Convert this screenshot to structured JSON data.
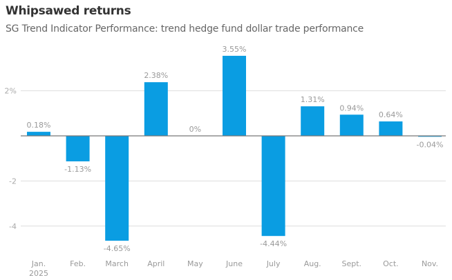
{
  "chart_data": {
    "type": "bar",
    "title": "Whipsawed returns",
    "subtitle": "SG Trend Indicator Performance: trend hedge fund dollar trade performance",
    "categories": [
      "Jan.\n2025",
      "Feb.",
      "March",
      "April",
      "May",
      "June",
      "July",
      "Aug.",
      "Sept.",
      "Oct.",
      "Nov."
    ],
    "values": [
      0.18,
      -1.13,
      -4.65,
      2.38,
      0,
      3.55,
      -4.44,
      1.31,
      0.94,
      0.64,
      -0.04
    ],
    "data_labels": [
      "0.18%",
      "-1.13%",
      "-4.65%",
      "2.38%",
      "0%",
      "3.55%",
      "-4.44%",
      "1.31%",
      "0.94%",
      "0.64%",
      "-0.04%"
    ],
    "yticks": [
      2,
      -2,
      -4
    ],
    "ytick_labels": [
      "2%",
      "-2",
      "-4"
    ],
    "ylim": [
      -5.5,
      4
    ],
    "xlabel": "",
    "ylabel": "",
    "grid": true,
    "bar_color": "#0a9de2"
  }
}
